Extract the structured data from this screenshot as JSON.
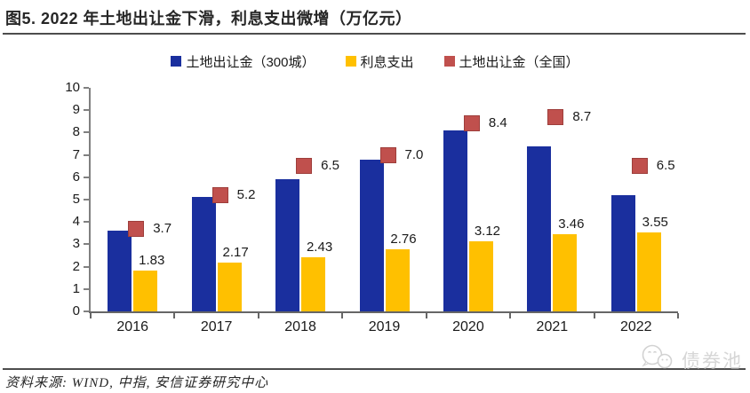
{
  "figure": {
    "title": "图5. 2022 年土地出让金下滑，利息支出微增（万亿元）",
    "source_note": "资料来源: WIND, 中指, 安信证券研究中心",
    "watermark": "债券池"
  },
  "colors": {
    "bar_blue": "#1A2F9E",
    "bar_yellow": "#FFC000",
    "marker_red": "#C0504D",
    "marker_red_border": "#9E3E3B",
    "axis_gray": "#808080",
    "rule_dark": "#4D4D4D",
    "watermark_gray": "#D6D6D6"
  },
  "chart_data": {
    "type": "bar",
    "title": "图5. 2022 年土地出让金下滑，利息支出微增（万亿元）",
    "categories": [
      "2016",
      "2017",
      "2018",
      "2019",
      "2020",
      "2021",
      "2022"
    ],
    "series": [
      {
        "name": "土地出让金（300城）",
        "render": "bar",
        "color": "#1A2F9E",
        "values": [
          3.6,
          5.1,
          5.9,
          6.8,
          8.1,
          7.4,
          5.2
        ],
        "show_labels": false
      },
      {
        "name": "利息支出",
        "render": "bar",
        "color": "#FFC000",
        "values": [
          1.83,
          2.17,
          2.43,
          2.76,
          3.12,
          3.46,
          3.55
        ],
        "show_labels": true,
        "labels": [
          "1.83",
          "2.17",
          "2.43",
          "2.76",
          "3.12",
          "3.46",
          "3.55"
        ]
      },
      {
        "name": "土地出让金（全国）",
        "render": "point",
        "color": "#C0504D",
        "values": [
          3.7,
          5.2,
          6.5,
          7.0,
          8.4,
          8.7,
          6.5
        ],
        "show_labels": true,
        "labels": [
          "3.7",
          "5.2",
          "6.5",
          "7.0",
          "8.4",
          "8.7",
          "6.5"
        ]
      }
    ],
    "xlabel": "",
    "ylabel": "",
    "unit": "万亿元",
    "ylim": [
      0,
      10
    ],
    "ytick_step": 1,
    "grid": false,
    "legend_position": "top"
  }
}
